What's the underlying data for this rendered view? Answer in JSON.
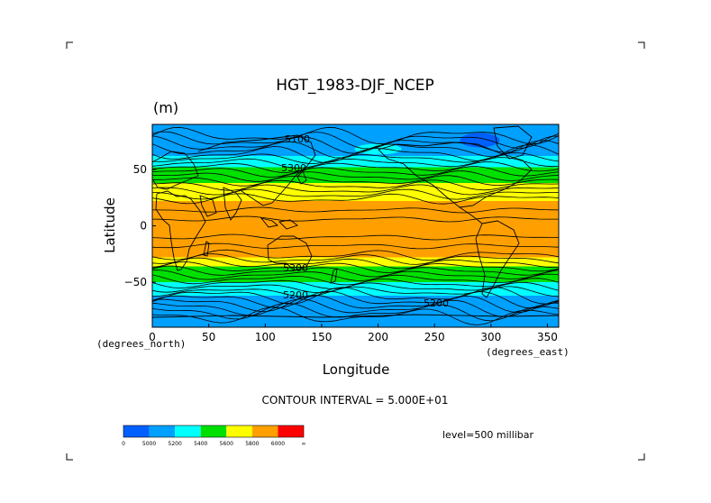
{
  "chart_data": {
    "type": "heatmap",
    "title": "HGT_1983-DJF_NCEP",
    "units": "(m)",
    "xlabel": "Longitude",
    "ylabel": "Latitude",
    "xunit": "(degrees_east)",
    "yunit": "(degrees_north)",
    "xlim": [
      0,
      360
    ],
    "ylim": [
      -90,
      90
    ],
    "xticks": [
      0,
      50,
      100,
      150,
      200,
      250,
      300,
      350
    ],
    "yticks": [
      -50,
      0,
      50
    ],
    "contour_interval_text": "CONTOUR INTERVAL = 5.000E+01",
    "level_text": "level=500 millibar",
    "contour_labels": [
      "5100",
      "5200",
      "5200",
      "5300",
      "5300"
    ],
    "colorbar": {
      "bounds": [
        "0",
        "5000",
        "5200",
        "5400",
        "5600",
        "5800",
        "6000",
        "∞"
      ],
      "colors": [
        "#0060ff",
        "#00a0ff",
        "#00ffff",
        "#00e000",
        "#ffff00",
        "#ffa000",
        "#ff0000"
      ]
    },
    "bands": [
      {
        "lat_min": 62,
        "lat_max": 90,
        "color": "#00a0ff"
      },
      {
        "lat_min": 52,
        "lat_max": 62,
        "color": "#00ffff"
      },
      {
        "lat_min": 38,
        "lat_max": 52,
        "color": "#00e000"
      },
      {
        "lat_min": 22,
        "lat_max": 38,
        "color": "#ffff00"
      },
      {
        "lat_min": -28,
        "lat_max": 22,
        "color": "#ffa000"
      },
      {
        "lat_min": -36,
        "lat_max": -28,
        "color": "#ffff00"
      },
      {
        "lat_min": -50,
        "lat_max": -36,
        "color": "#00e000"
      },
      {
        "lat_min": -62,
        "lat_max": -50,
        "color": "#00ffff"
      },
      {
        "lat_min": -90,
        "lat_max": -62,
        "color": "#00a0ff"
      }
    ]
  }
}
